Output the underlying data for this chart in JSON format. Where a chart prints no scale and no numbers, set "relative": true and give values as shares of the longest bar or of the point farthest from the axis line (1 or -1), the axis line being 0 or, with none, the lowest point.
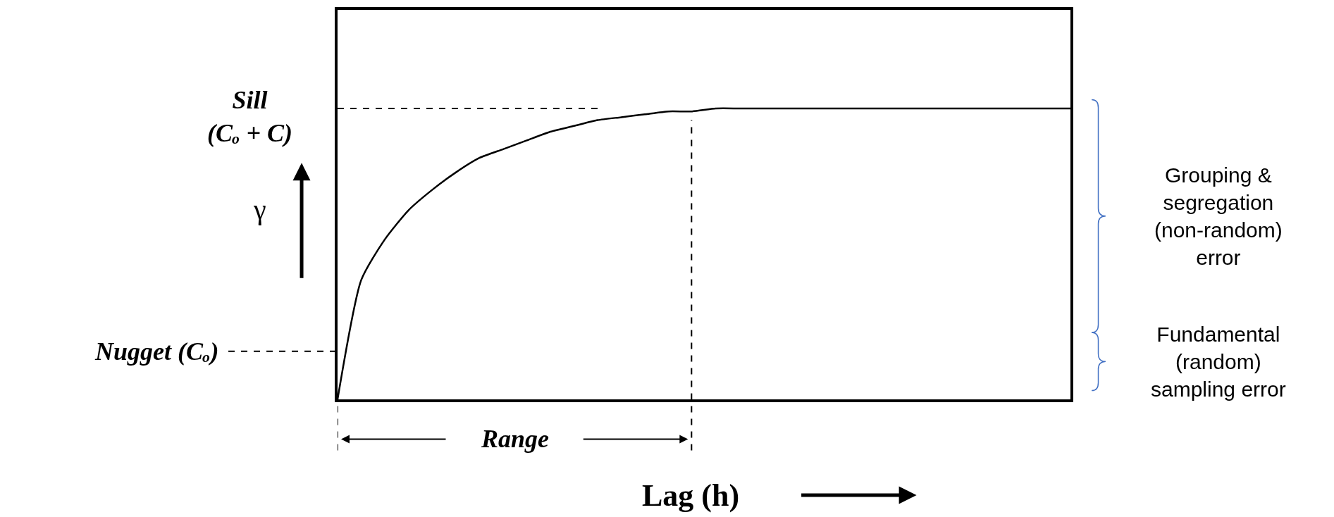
{
  "chart_data": {
    "type": "line",
    "relative": true,
    "xlabel": "Lag (h)",
    "ylabel": "γ",
    "categories": [
      null,
      null,
      null,
      null,
      null,
      null,
      null,
      null,
      null,
      null,
      null,
      null,
      null,
      null,
      null,
      null,
      null,
      null,
      null,
      null,
      null,
      null,
      null,
      null,
      null,
      null,
      null,
      null,
      null,
      null,
      null,
      null
    ],
    "series": [
      {
        "color": "#000000",
        "values": [
          0,
          0.41,
          0.55,
          0.65,
          0.72,
          0.78,
          0.83,
          0.86,
          0.89,
          0.92,
          0.94,
          0.96,
          0.97,
          0.98,
          0.99,
          0.99,
          1,
          1,
          1,
          1,
          1,
          1,
          1,
          1,
          1,
          1,
          1,
          1,
          1,
          1,
          1,
          1
        ]
      }
    ],
    "ref_lines": [
      {
        "axis": "y",
        "value": 1,
        "label": "Sill\n(Cₒ + C)",
        "line_style": "dashed",
        "color": "#000000"
      },
      {
        "axis": "y",
        "value": 0.165,
        "label": "Nugget (Cₒ)",
        "line_style": "dashed",
        "color": "#000000"
      }
    ],
    "annotations": [
      "Range",
      "Grouping &\nsegregation\n(non-random)\nerror",
      "Fundamental\n(random)\nsampling error"
    ],
    "marker": "none",
    "line_style": "solid"
  }
}
